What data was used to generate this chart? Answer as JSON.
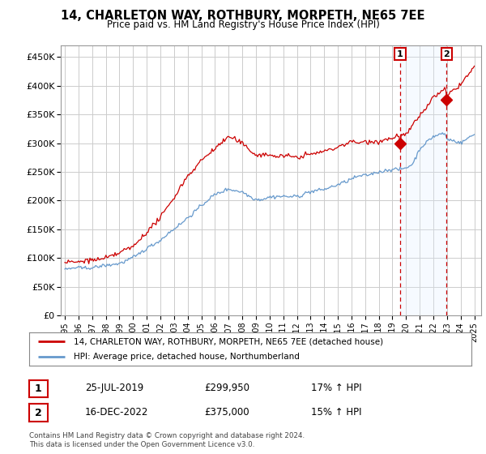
{
  "title": "14, CHARLETON WAY, ROTHBURY, MORPETH, NE65 7EE",
  "subtitle": "Price paid vs. HM Land Registry's House Price Index (HPI)",
  "yticks": [
    0,
    50000,
    100000,
    150000,
    200000,
    250000,
    300000,
    350000,
    400000,
    450000
  ],
  "ytick_labels": [
    "£0",
    "£50K",
    "£100K",
    "£150K",
    "£200K",
    "£250K",
    "£300K",
    "£350K",
    "£400K",
    "£450K"
  ],
  "ylim": [
    0,
    470000
  ],
  "sale1_date": 2019.56,
  "sale1_price": 299950,
  "sale2_date": 2022.96,
  "sale2_price": 375000,
  "sale1_text": "25-JUL-2019",
  "sale1_amount": "£299,950",
  "sale1_hpi": "17% ↑ HPI",
  "sale2_text": "16-DEC-2022",
  "sale2_amount": "£375,000",
  "sale2_hpi": "15% ↑ HPI",
  "legend_line1": "14, CHARLETON WAY, ROTHBURY, MORPETH, NE65 7EE (detached house)",
  "legend_line2": "HPI: Average price, detached house, Northumberland",
  "footnote": "Contains HM Land Registry data © Crown copyright and database right 2024.\nThis data is licensed under the Open Government Licence v3.0.",
  "line_color_house": "#cc0000",
  "line_color_hpi": "#6699cc",
  "shade_color": "#ddeeff",
  "grid_color": "#cccccc",
  "background_color": "#ffffff"
}
